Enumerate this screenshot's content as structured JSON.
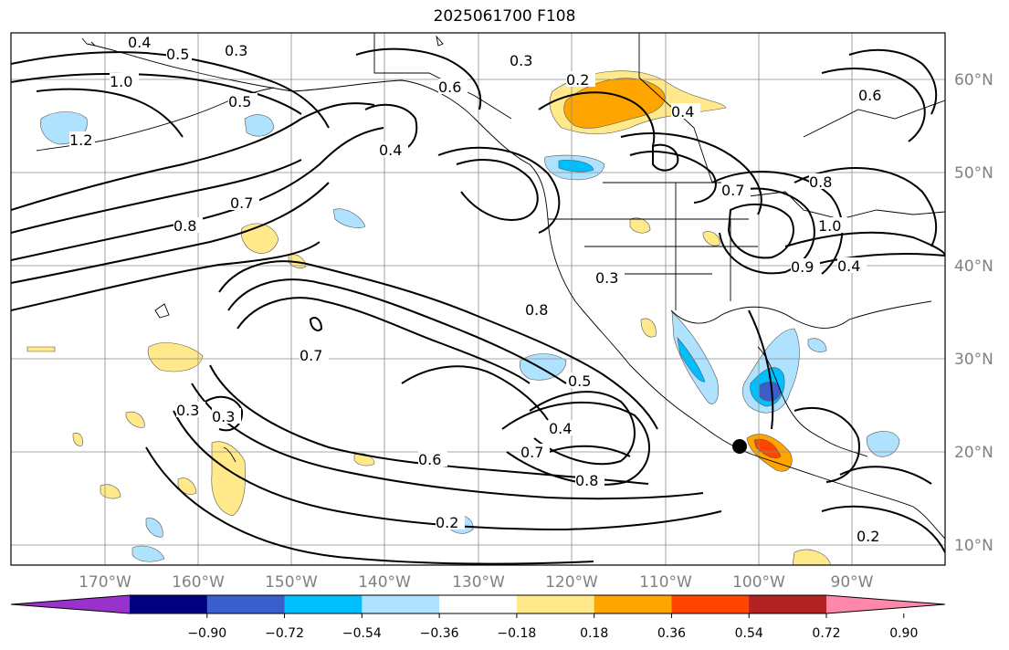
{
  "title": "2025061700 F108",
  "map": {
    "lon_labels": [
      "170°W",
      "160°W",
      "150°W",
      "140°W",
      "130°W",
      "120°W",
      "110°W",
      "100°W",
      "90°W"
    ],
    "lat_labels": [
      "60°N",
      "50°N",
      "40°N",
      "30°N",
      "20°N",
      "10°N"
    ],
    "contour_labels": [
      "0.4",
      "0.5",
      "0.3",
      "1.0",
      "1.2",
      "0.3",
      "0.6",
      "0.2",
      "0.4",
      "0.7",
      "0.8",
      "0.6",
      "0.4",
      "0.5",
      "0.7",
      "0.8",
      "1.0",
      "0.9",
      "0.4",
      "0.3",
      "0.8",
      "0.7",
      "0.3",
      "0.3",
      "0.5",
      "0.4",
      "0.6",
      "0.7",
      "0.8",
      "0.2",
      "0.2"
    ],
    "marker": "storm-center-dot"
  },
  "colorbar": {
    "ticks": [
      "−0.90",
      "−0.72",
      "−0.54",
      "−0.36",
      "−0.18",
      "0.18",
      "0.36",
      "0.54",
      "0.72",
      "0.90"
    ],
    "colors": [
      "#9932cc",
      "#000080",
      "#3a5fcd",
      "#00bfff",
      "#aee2ff",
      "#ffffff",
      "#ffe98a",
      "#ffa500",
      "#ff4500",
      "#b22222",
      "#ff88aa"
    ]
  }
}
